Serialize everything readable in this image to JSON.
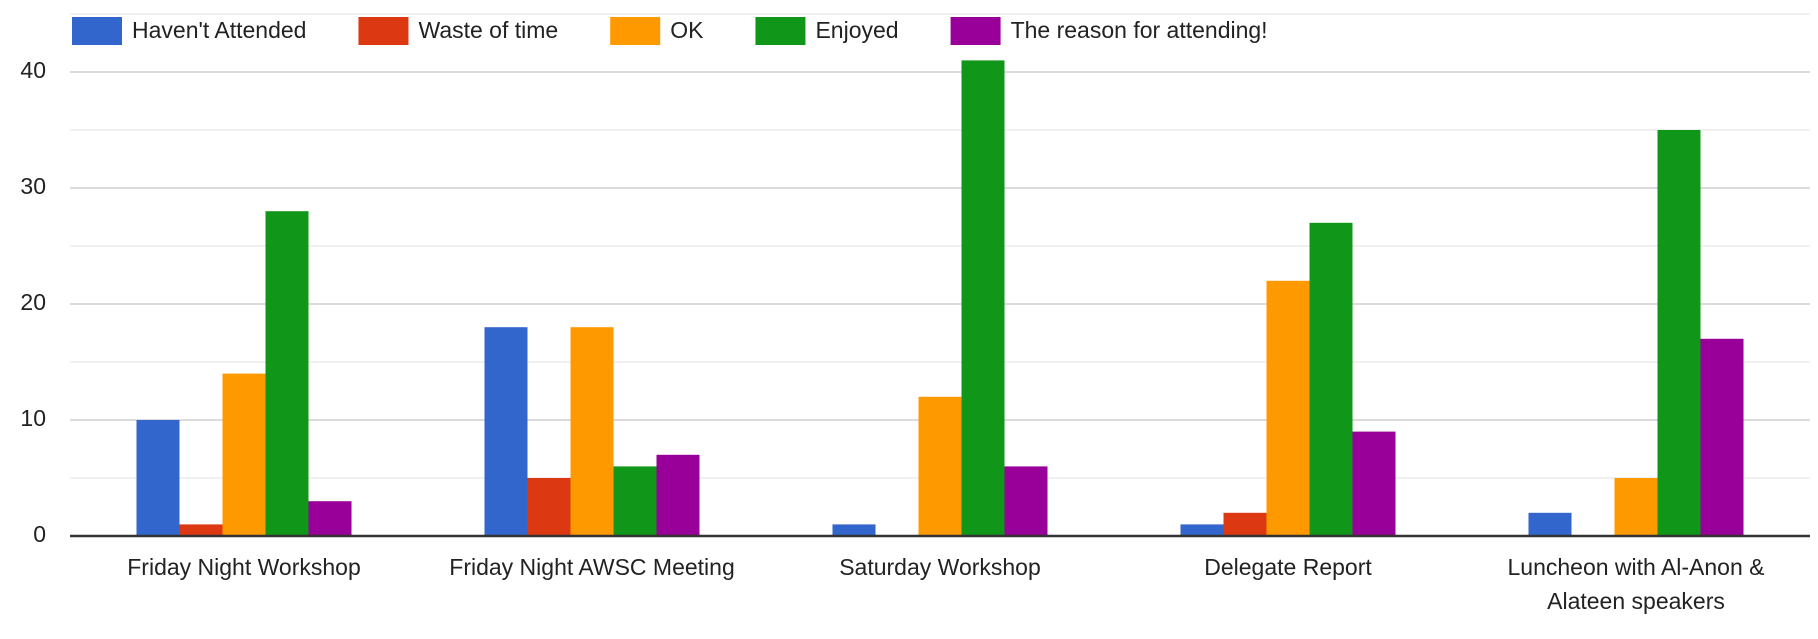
{
  "chart_data": {
    "type": "bar",
    "categories": [
      "Friday Night Workshop",
      "Friday Night AWSC Meeting",
      "Saturday Workshop",
      "Delegate Report",
      "Luncheon with Al-Anon & Alateen speakers"
    ],
    "series": [
      {
        "name": "Haven't Attended",
        "color": "#3366cc",
        "values": [
          10,
          18,
          1,
          1,
          2
        ]
      },
      {
        "name": "Waste of time",
        "color": "#dc3912",
        "values": [
          1,
          5,
          0,
          2,
          0
        ]
      },
      {
        "name": "OK",
        "color": "#ff9900",
        "values": [
          14,
          18,
          12,
          22,
          5
        ]
      },
      {
        "name": "Enjoyed",
        "color": "#109618",
        "values": [
          28,
          6,
          41,
          27,
          35
        ]
      },
      {
        "name": "The reason for attending!",
        "color": "#990099",
        "values": [
          3,
          7,
          6,
          9,
          17
        ]
      }
    ],
    "ylim": [
      0,
      45
    ],
    "yticks": [
      0,
      10,
      20,
      30,
      40
    ],
    "minor_yticks": [
      5,
      15,
      25,
      35,
      45
    ],
    "grid": true,
    "legend": "top"
  }
}
